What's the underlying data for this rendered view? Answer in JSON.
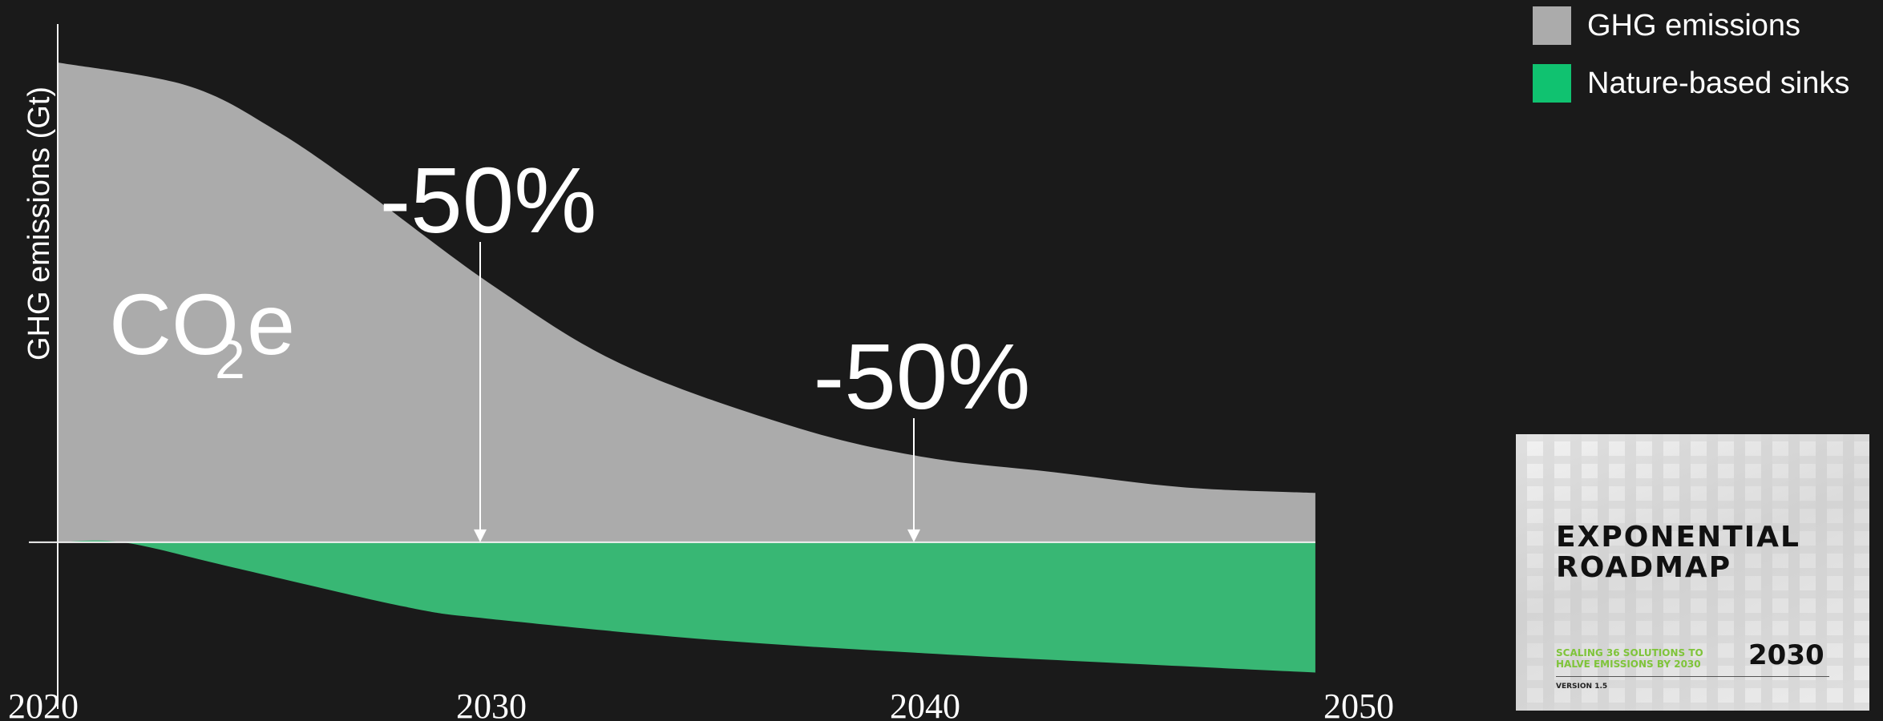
{
  "chart_data": {
    "type": "area",
    "ylabel": "GHG emissions (Gt)",
    "x_ticks": [
      "2020",
      "2030",
      "2040",
      "2050"
    ],
    "xlim": [
      2020,
      2050
    ],
    "ylim": [
      -1.0,
      3.5
    ],
    "series": [
      {
        "name": "GHG emissions",
        "color": "#ababab",
        "x": [
          2020,
          2023,
          2025,
          2027,
          2030,
          2033,
          2037,
          2040,
          2043,
          2046,
          2049
        ],
        "y": [
          3.5,
          3.33,
          3.01,
          2.58,
          1.88,
          1.3,
          0.84,
          0.62,
          0.51,
          0.4,
          0.36
        ]
      },
      {
        "name": "Nature-based sinks",
        "color": "#38b774",
        "x": [
          2020,
          2021.5,
          2024,
          2028,
          2030,
          2035,
          2040,
          2045,
          2049
        ],
        "y": [
          0.0,
          0.0,
          -0.18,
          -0.47,
          -0.56,
          -0.71,
          -0.81,
          -0.89,
          -0.95
        ]
      }
    ],
    "area_label": {
      "main": "CO",
      "subscript": "2",
      "suffix": "e"
    },
    "annotations": [
      {
        "text": "-50%",
        "x": 2030
      },
      {
        "text": "-50%",
        "x": 2040
      }
    ],
    "legend": {
      "position": "top-right"
    }
  },
  "cover": {
    "title_line1": "EXPONENTIAL",
    "title_line2": "ROADMAP",
    "subtitle_line1": "SCALING 36 SOLUTIONS TO",
    "subtitle_line2": "HALVE EMISSIONS BY 2030",
    "logo": "2030",
    "version": "VERSION 1.5"
  }
}
